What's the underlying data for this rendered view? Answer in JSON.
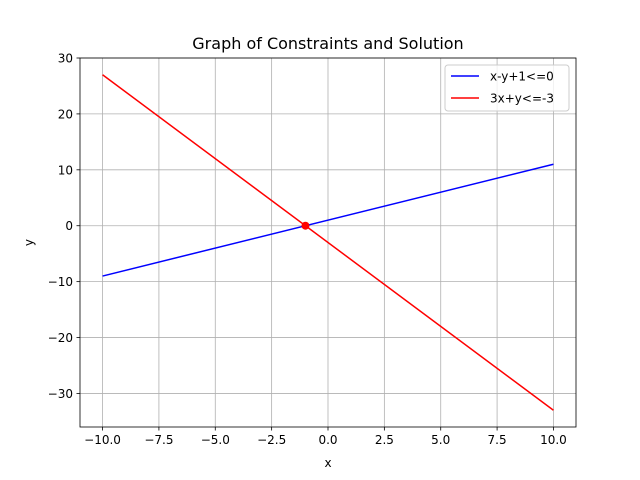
{
  "chart_data": {
    "type": "line",
    "title": "Graph of Constraints and Solution",
    "xlabel": "x",
    "ylabel": "y",
    "xlim": [
      -11,
      11
    ],
    "ylim": [
      -36,
      30
    ],
    "xticks": [
      -10,
      -7.5,
      -5,
      -2.5,
      0,
      2.5,
      5,
      7.5,
      10
    ],
    "xtick_labels": [
      "−10.0",
      "−7.5",
      "−5.0",
      "−2.5",
      "0.0",
      "2.5",
      "5.0",
      "7.5",
      "10.0"
    ],
    "yticks": [
      -30,
      -20,
      -10,
      0,
      10,
      20,
      30
    ],
    "ytick_labels": [
      "−30",
      "−20",
      "−10",
      "0",
      "10",
      "20",
      "30"
    ],
    "grid": true,
    "legend_position": "top-right",
    "series": [
      {
        "name": "x-y+1<=0",
        "color": "#0000ff",
        "x": [
          -10,
          10
        ],
        "y": [
          -9,
          11
        ]
      },
      {
        "name": "3x+y<=-3",
        "color": "#ff0000",
        "x": [
          -10,
          10
        ],
        "y": [
          27,
          -33
        ]
      }
    ],
    "points": [
      {
        "x": -1,
        "y": 0,
        "color": "#ff0000"
      }
    ]
  }
}
